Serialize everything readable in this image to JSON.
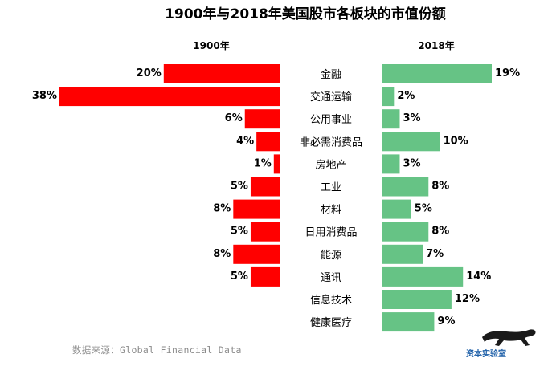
{
  "chart_data": {
    "type": "bar",
    "title": "1900年与2018年美国股市各板块的市值份额",
    "categories": [
      "金融",
      "交通运输",
      "公用事业",
      "非必需消费品",
      "房地产",
      "工业",
      "材料",
      "日用消费品",
      "能源",
      "通讯",
      "信息技术",
      "健康医疗"
    ],
    "series": [
      {
        "name": "1900年",
        "values": [
          20,
          38,
          6,
          4,
          1,
          5,
          8,
          5,
          8,
          5,
          null,
          null
        ],
        "labels": [
          "20%",
          "38%",
          "6%",
          "4%",
          "1%",
          "5%",
          "8%",
          "5%",
          "8%",
          "5%",
          "",
          ""
        ],
        "color": "#ff0000"
      },
      {
        "name": "2018年",
        "values": [
          19,
          2,
          3,
          10,
          3,
          8,
          5,
          8,
          7,
          14,
          12,
          9
        ],
        "labels": [
          "19%",
          "2%",
          "3%",
          "10%",
          "3%",
          "8%",
          "5%",
          "8%",
          "7%",
          "14%",
          "12%",
          "9%"
        ],
        "color": "#66c385"
      }
    ],
    "legend": "top"
  },
  "source": "数据来源：Global Financial Data",
  "brand": "资本实验室"
}
